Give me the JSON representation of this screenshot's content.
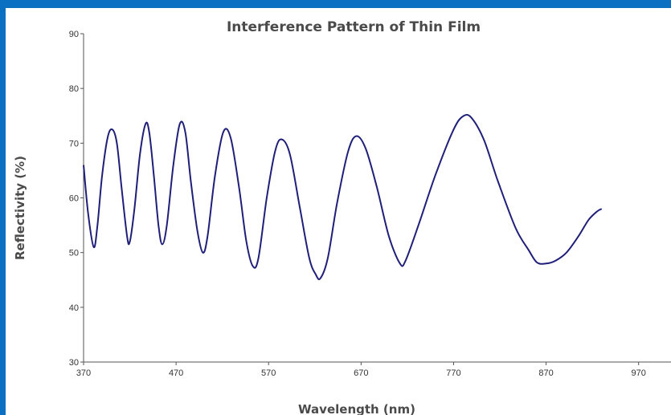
{
  "chart_data": {
    "type": "line",
    "title": "Interference Pattern of Thin Film",
    "xlabel": "Wavelength (nm)",
    "ylabel": "Reflectivity (%)",
    "xlim": [
      370,
      1005
    ],
    "ylim": [
      30,
      90
    ],
    "xticks": [
      "370",
      "470",
      "570",
      "670",
      "770",
      "870",
      "970"
    ],
    "yticks": [
      "30",
      "40",
      "50",
      "60",
      "70",
      "80",
      "90"
    ],
    "grid": false,
    "legend": "none",
    "series": [
      {
        "color": "#1f1f7a",
        "points": [
          [
            370,
            66
          ],
          [
            375,
            57
          ],
          [
            381,
            51
          ],
          [
            385,
            55
          ],
          [
            390,
            64
          ],
          [
            396,
            71
          ],
          [
            401,
            72.5
          ],
          [
            406,
            70
          ],
          [
            411,
            62
          ],
          [
            417,
            53
          ],
          [
            420,
            52
          ],
          [
            425,
            58
          ],
          [
            431,
            68
          ],
          [
            437,
            73.5
          ],
          [
            441,
            72
          ],
          [
            446,
            64
          ],
          [
            451,
            55
          ],
          [
            455,
            51.5
          ],
          [
            460,
            55
          ],
          [
            467,
            66
          ],
          [
            474,
            73.5
          ],
          [
            480,
            72
          ],
          [
            486,
            63
          ],
          [
            493,
            54
          ],
          [
            499,
            50
          ],
          [
            504,
            53
          ],
          [
            512,
            64
          ],
          [
            521,
            72
          ],
          [
            529,
            71
          ],
          [
            538,
            62
          ],
          [
            546,
            52
          ],
          [
            553,
            47.5
          ],
          [
            559,
            49
          ],
          [
            568,
            60
          ],
          [
            577,
            68.5
          ],
          [
            584,
            70.7
          ],
          [
            593,
            68
          ],
          [
            604,
            58
          ],
          [
            614,
            49
          ],
          [
            621,
            46
          ],
          [
            626,
            45.3
          ],
          [
            634,
            49
          ],
          [
            644,
            59
          ],
          [
            656,
            68.5
          ],
          [
            665,
            71.3
          ],
          [
            675,
            69
          ],
          [
            687,
            62
          ],
          [
            700,
            53
          ],
          [
            712,
            48
          ],
          [
            718,
            48.5
          ],
          [
            732,
            55
          ],
          [
            750,
            64
          ],
          [
            770,
            72.5
          ],
          [
            781,
            75
          ],
          [
            790,
            74.5
          ],
          [
            803,
            70.5
          ],
          [
            818,
            63
          ],
          [
            837,
            54.5
          ],
          [
            851,
            50.5
          ],
          [
            860,
            48.2
          ],
          [
            870,
            48
          ],
          [
            880,
            48.5
          ],
          [
            892,
            50
          ],
          [
            905,
            53
          ],
          [
            916,
            56
          ],
          [
            925,
            57.5
          ],
          [
            930,
            58
          ]
        ]
      }
    ]
  }
}
